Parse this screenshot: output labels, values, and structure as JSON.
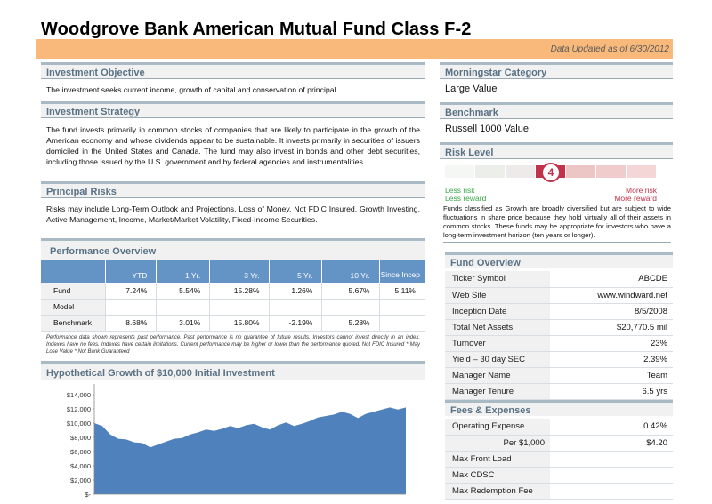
{
  "header": {
    "title": "Woodgrove Bank American Mutual Fund Class F-2",
    "updated": "Data Updated as of 6/30/2012"
  },
  "objective": {
    "heading": "Investment Objective",
    "text": "The investment seeks current income, growth of capital and conservation of principal."
  },
  "strategy": {
    "heading": "Investment Strategy",
    "text": "The fund invests primarily in common stocks of companies that are likely to participate in the growth of the American economy and whose dividends appear to be sustainable. It invests primarily in securities of issuers domiciled in the United States and Canada. The fund may also invest in bonds and other debt securities, including those issued by the U.S. government and by federal agencies and instrumentalities."
  },
  "risks": {
    "heading": "Principal Risks",
    "text": "Risks may include Long-Term Outlook and Projections, Loss of Money, Not FDIC Insured, Growth Investing, Active Management, Income, Market/Market Volatility, Fixed-Income Securities."
  },
  "performance": {
    "heading": "Performance Overview",
    "columns": [
      "YTD",
      "1 Yr.",
      "3 Yr.",
      "5 Yr.",
      "10 Yr.",
      "Since Incep"
    ],
    "rows": [
      {
        "label": "Fund",
        "values": [
          "7.24%",
          "5.54%",
          "15.28%",
          "1.26%",
          "5.67%",
          "5.11%"
        ]
      },
      {
        "label": "Model",
        "values": [
          "",
          "",
          "",
          "",
          "",
          ""
        ]
      },
      {
        "label": "Benchmark",
        "values": [
          "8.68%",
          "3.01%",
          "15.80%",
          "-2.19%",
          "5.28%",
          ""
        ]
      }
    ],
    "disclaimer": "Performance data shown represents past performance. Past performance is no guarantee of future results. Investors cannot invest directly in an index. Indexes have no fees. Indexes have certain limitations. Current performance may be higher or lower than the performance quoted. Not FDIC Insured * May Lose Value * Not Bank Guaranteed"
  },
  "growth": {
    "heading": "Hypothetical Growth of $10,000 Initial Investment"
  },
  "morningstar": {
    "heading": "Morningstar Category",
    "value": "Large Value"
  },
  "benchmark": {
    "heading": "Benchmark",
    "value": "Russell 1000 Value"
  },
  "risk_level": {
    "heading": "Risk Level",
    "level": 4,
    "level_text": "4",
    "scale_max": 7,
    "less_risk": "Less risk",
    "less_reward": "Less reward",
    "more_risk": "More risk",
    "more_reward": "More reward",
    "description": "Funds classified as Growth are broadly diversified but are subject to wide fluctuations in share price because they hold virtually all of their assets in common stocks. These funds may be appropriate for investors who have a long-term investment horizon (ten years or longer)."
  },
  "fund_overview": {
    "heading": "Fund Overview",
    "rows": [
      {
        "k": "Ticker Symbol",
        "v": "ABCDE"
      },
      {
        "k": "Web Site",
        "v": "www.windward.net"
      },
      {
        "k": "Inception Date",
        "v": "8/5/2008"
      },
      {
        "k": "Total Net Assets",
        "v": "$20,770.5 mil"
      },
      {
        "k": "Turnover",
        "v": "23%"
      },
      {
        "k": "Yield – 30 day SEC",
        "v": "2.39%"
      },
      {
        "k": "Manager Name",
        "v": "Team"
      },
      {
        "k": "Manager Tenure",
        "v": "6.5 yrs"
      }
    ]
  },
  "fees": {
    "heading": "Fees & Expenses",
    "rows": [
      {
        "k": "Operating Expense",
        "v": "0.42%"
      },
      {
        "k": "Per $1,000",
        "v": "$4.20"
      },
      {
        "k": "Max Front Load",
        "v": ""
      },
      {
        "k": "Max CDSC",
        "v": ""
      },
      {
        "k": "Max Redemption Fee",
        "v": ""
      }
    ]
  },
  "colors": {
    "accent_orange": "#f8b97a",
    "header_blue": "#6493c6",
    "risk_red": "#c0334a",
    "less_green": "#3aa64a"
  },
  "chart_data": {
    "type": "area",
    "title": "Hypothetical Growth of $10,000 Initial Investment",
    "ylim": [
      0,
      14000
    ],
    "y_ticks": [
      "$14,000",
      "$12,000",
      "$10,000",
      "$8,000",
      "$6,000",
      "$4,000",
      "$2,000",
      "$-"
    ],
    "series": [
      {
        "values": [
          10000,
          9600,
          8400,
          7800,
          7700,
          7300,
          7200,
          6600,
          7000,
          7400,
          7800,
          7900,
          8400,
          8700,
          9100,
          8900,
          9200,
          9600,
          9300,
          9700,
          9900,
          9400,
          9100,
          9700,
          10100,
          9600,
          9900,
          10300,
          10800,
          11000,
          11200,
          11600,
          11300,
          10700,
          11300,
          11600,
          11900,
          12200,
          11900,
          12200
        ]
      }
    ],
    "fill_color": "#4f81bd",
    "grid": false
  }
}
